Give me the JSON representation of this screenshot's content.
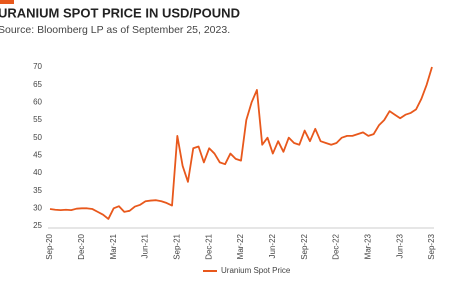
{
  "chart_data": {
    "type": "line",
    "title": "URANIUM SPOT PRICE IN USD/POUND",
    "subtitle": "Source: Bloomberg LP as of September 25, 2023.",
    "categories": [
      "Sep-20",
      null,
      null,
      null,
      null,
      null,
      "Dec-20",
      null,
      null,
      null,
      null,
      null,
      "Mar-21",
      null,
      null,
      null,
      null,
      null,
      "Jun-21",
      null,
      null,
      null,
      null,
      null,
      "Sep-21",
      null,
      null,
      null,
      null,
      null,
      "Dec-21",
      null,
      null,
      null,
      null,
      null,
      "Mar-22",
      null,
      null,
      null,
      null,
      null,
      "Jun-22",
      null,
      null,
      null,
      null,
      null,
      "Sep-22",
      null,
      null,
      null,
      null,
      null,
      "Dec-22",
      null,
      null,
      null,
      null,
      null,
      "Mar-23",
      null,
      null,
      null,
      null,
      null,
      "Jun-23",
      null,
      null,
      null,
      null,
      null,
      "Sep-23"
    ],
    "series": [
      {
        "name": "Uranium Spot Price",
        "color": "#e8581c",
        "values": [
          29.8,
          29.6,
          29.5,
          29.6,
          29.5,
          29.9,
          30.0,
          30.0,
          29.8,
          29.0,
          28.2,
          27.0,
          30.0,
          30.6,
          29.0,
          29.3,
          30.5,
          31.0,
          32.0,
          32.2,
          32.3,
          32.0,
          31.5,
          30.8,
          50.5,
          42,
          37.5,
          47,
          47.5,
          43,
          47,
          45.5,
          43,
          42.5,
          45.5,
          44,
          43.5,
          55,
          60,
          63.5,
          48,
          50,
          45.5,
          49,
          46,
          50,
          48.5,
          48,
          52,
          49,
          52.5,
          49,
          48.5,
          48,
          48.5,
          50,
          50.5,
          50.5,
          51,
          51.5,
          50.5,
          51,
          53.5,
          55,
          57.5,
          56.5,
          55.5,
          56.5,
          57,
          58,
          61,
          65,
          70
        ]
      }
    ],
    "ylim": [
      25,
      70
    ],
    "yticks": [
      25,
      30,
      35,
      40,
      45,
      50,
      55,
      60,
      65,
      70
    ],
    "grid": false,
    "legend": "bottom"
  }
}
